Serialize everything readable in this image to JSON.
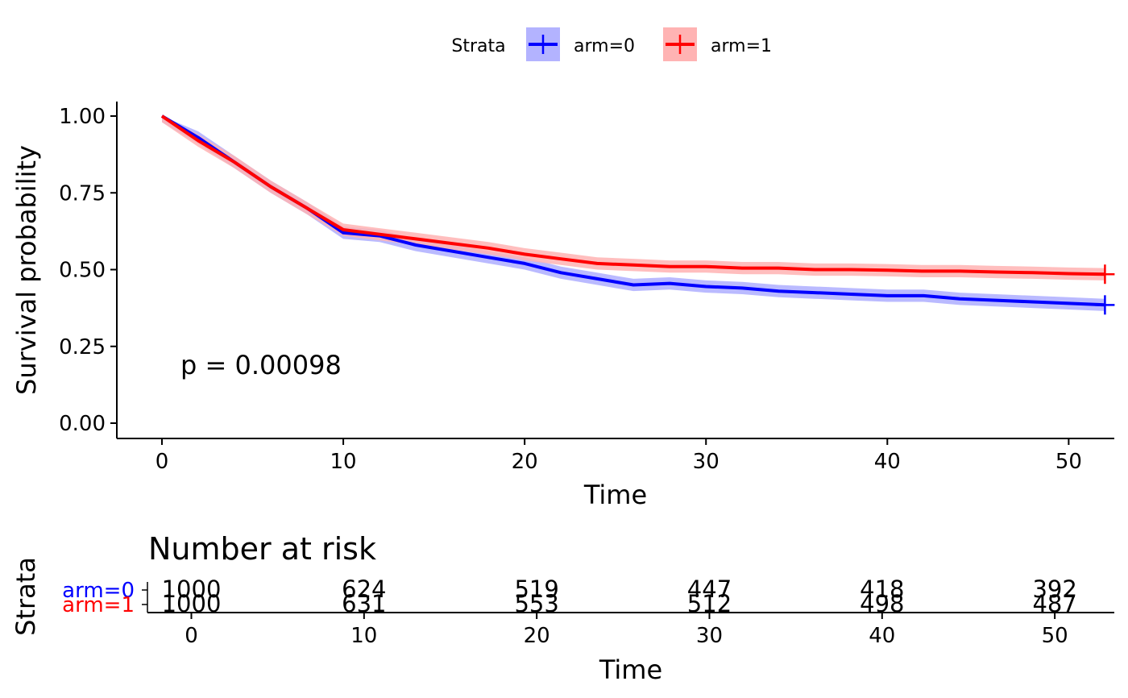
{
  "legend": {
    "title": "Strata",
    "items": [
      {
        "label": "arm=0",
        "color": "#0000ff",
        "fill": "#b3b3ff"
      },
      {
        "label": "arm=1",
        "color": "#ff0000",
        "fill": "#ffb3b3"
      }
    ]
  },
  "chart_data": [
    {
      "type": "line",
      "subtype": "kaplan-meier",
      "title": "",
      "xlabel": "Time",
      "ylabel": "Survival probability",
      "xlim": [
        0,
        52
      ],
      "ylim": [
        0,
        1
      ],
      "x_ticks": [
        "0",
        "10",
        "20",
        "30",
        "40",
        "50"
      ],
      "y_ticks": [
        "0.00",
        "0.25",
        "0.50",
        "0.75",
        "1.00"
      ],
      "grid": false,
      "legend_position": "top",
      "annotation": "p = 0.00098",
      "series": [
        {
          "name": "arm=0",
          "color": "#0000ff",
          "x": [
            0,
            2,
            4,
            6,
            8,
            10,
            12,
            14,
            16,
            18,
            20,
            22,
            24,
            26,
            28,
            30,
            32,
            34,
            36,
            38,
            40,
            42,
            44,
            46,
            48,
            50,
            52
          ],
          "y": [
            1.0,
            0.93,
            0.85,
            0.77,
            0.7,
            0.62,
            0.61,
            0.58,
            0.56,
            0.54,
            0.52,
            0.49,
            0.47,
            0.45,
            0.455,
            0.445,
            0.44,
            0.43,
            0.425,
            0.42,
            0.415,
            0.415,
            0.405,
            0.4,
            0.395,
            0.39,
            0.385
          ],
          "ci_halfwidth": 0.02,
          "censor_end": true
        },
        {
          "name": "arm=1",
          "color": "#ff0000",
          "x": [
            0,
            2,
            4,
            6,
            8,
            10,
            12,
            14,
            16,
            18,
            20,
            22,
            24,
            26,
            28,
            30,
            32,
            34,
            36,
            38,
            40,
            42,
            44,
            46,
            48,
            50,
            52
          ],
          "y": [
            1.0,
            0.92,
            0.85,
            0.77,
            0.7,
            0.63,
            0.615,
            0.6,
            0.585,
            0.57,
            0.55,
            0.535,
            0.52,
            0.515,
            0.51,
            0.51,
            0.505,
            0.505,
            0.5,
            0.5,
            0.498,
            0.495,
            0.495,
            0.492,
            0.49,
            0.487,
            0.485
          ],
          "ci_halfwidth": 0.02,
          "censor_end": true
        }
      ]
    },
    {
      "type": "table",
      "title": "Number at risk",
      "xlabel": "Time",
      "ylabel": "Strata",
      "xlim": [
        0,
        52
      ],
      "x_ticks": [
        "0",
        "10",
        "20",
        "30",
        "40",
        "50"
      ],
      "row_labels": [
        "arm=0",
        "arm=1"
      ],
      "row_colors": [
        "#0000ff",
        "#ff0000"
      ],
      "times": [
        0,
        10,
        20,
        30,
        40,
        50
      ],
      "rows": [
        [
          "1000",
          "624",
          "519",
          "447",
          "418",
          "392"
        ],
        [
          "1000",
          "631",
          "553",
          "512",
          "498",
          "487"
        ]
      ]
    }
  ]
}
